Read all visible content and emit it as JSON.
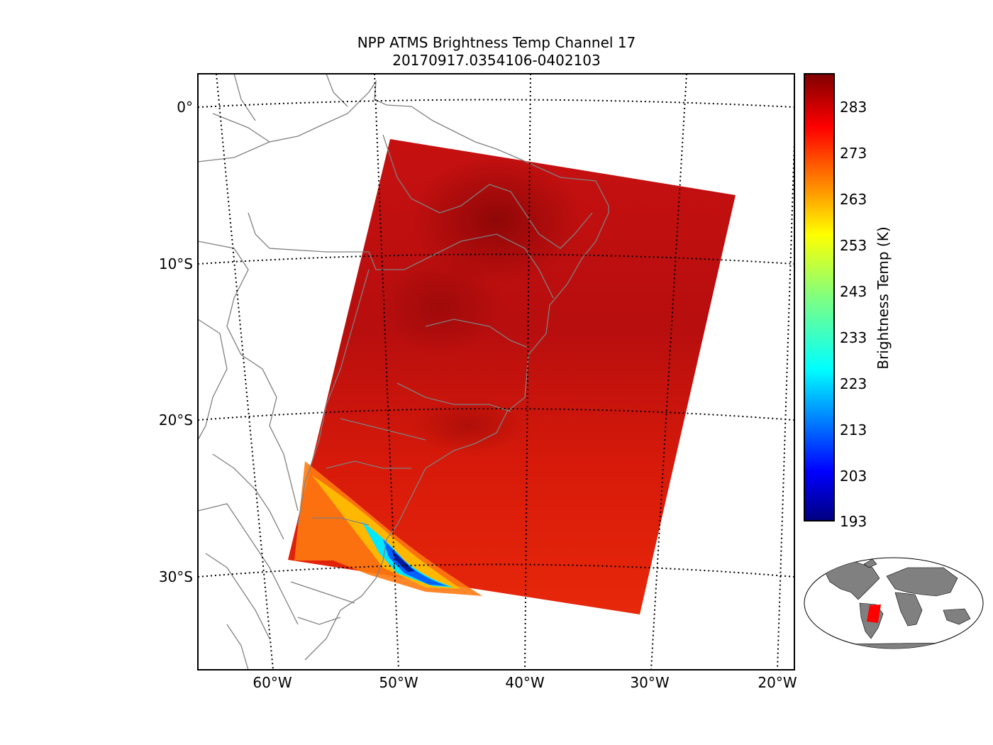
{
  "title": {
    "line1": "NPP ATMS Brightness Temp Channel 17",
    "line2": "20170917.0354106-0402103"
  },
  "map": {
    "projection": "oblique",
    "lat_labels": [
      "0°",
      "10°S",
      "20°S",
      "30°S"
    ],
    "lon_labels": [
      "60°W",
      "50°W",
      "40°W",
      "30°W",
      "20°W"
    ],
    "gridline_style": "dotted",
    "coastline_color": "#808080",
    "swath_dominant_color": "#d01010",
    "cold_band_colors": [
      "#ffd000",
      "#00e0ff",
      "#0040ff"
    ]
  },
  "colorbar": {
    "label": "Brightness Temp (K)",
    "ticks": [
      "283",
      "273",
      "263",
      "253",
      "243",
      "233",
      "223",
      "213",
      "203",
      "193"
    ],
    "range": [
      193,
      290
    ],
    "colormap": "jet"
  },
  "inset": {
    "description_color_land": "#808080",
    "swath_color": "#ff0000"
  }
}
